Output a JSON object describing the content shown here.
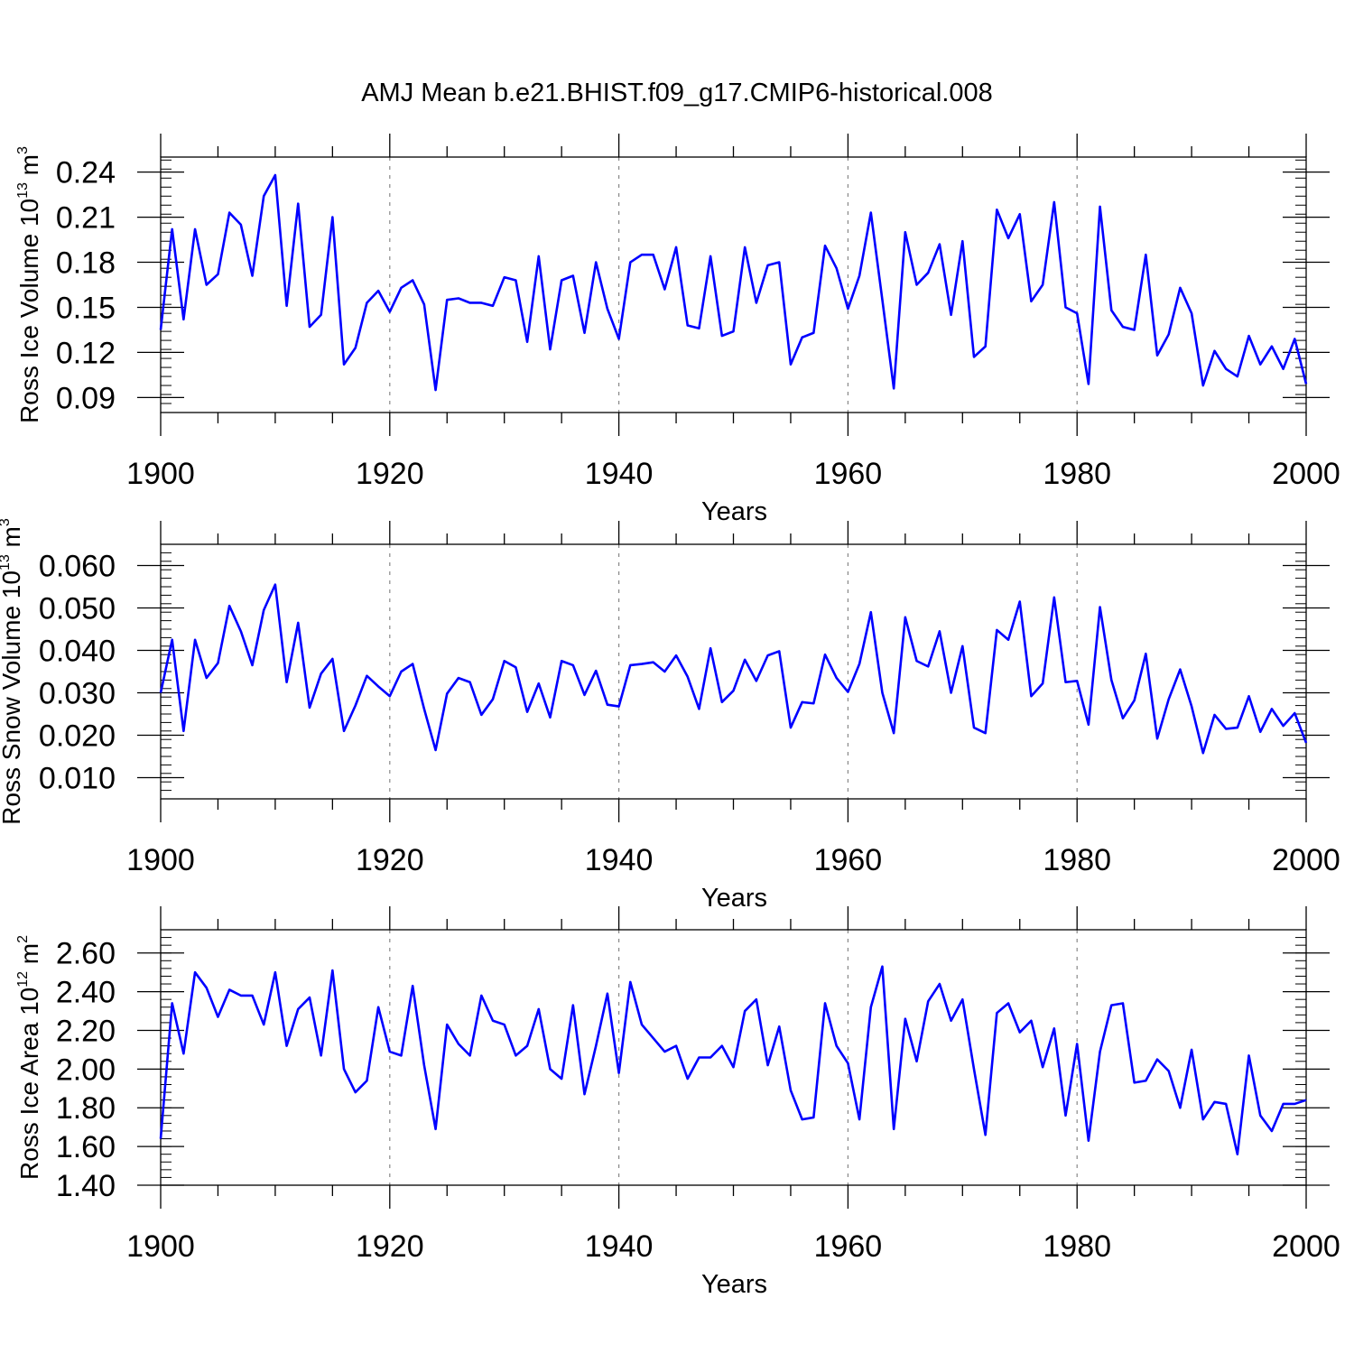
{
  "title": "AMJ Mean b.e21.BHIST.f09_g17.CMIP6-historical.008",
  "colors": {
    "series": "#0000ff",
    "axis": "#000000",
    "grid": "#888888",
    "background": "#ffffff"
  },
  "chart_data": [
    {
      "type": "line",
      "ylabel": "Ross Ice Volume 10",
      "ylabel_exp": "13",
      "ylabel_unit": " m",
      "ylabel_unit_exp": "3",
      "xlabel": "Years",
      "xlim": [
        1900,
        2000
      ],
      "ylim": [
        0.08,
        0.25
      ],
      "x_ticks": [
        1900,
        1920,
        1940,
        1960,
        1980,
        2000
      ],
      "x_tick_labels": [
        "1900",
        "1920",
        "1940",
        "1960",
        "1980",
        "2000"
      ],
      "y_ticks": [
        0.09,
        0.12,
        0.15,
        0.18,
        0.21,
        0.24
      ],
      "y_tick_labels": [
        "0.09",
        "0.12",
        "0.15",
        "0.18",
        "0.21",
        "0.24"
      ],
      "grid": "x-dashed",
      "x_start": 1900,
      "values": [
        0.135,
        0.202,
        0.142,
        0.202,
        0.165,
        0.172,
        0.213,
        0.205,
        0.171,
        0.224,
        0.238,
        0.151,
        0.219,
        0.137,
        0.145,
        0.21,
        0.112,
        0.123,
        0.153,
        0.161,
        0.147,
        0.163,
        0.168,
        0.152,
        0.095,
        0.155,
        0.156,
        0.153,
        0.153,
        0.151,
        0.17,
        0.168,
        0.127,
        0.184,
        0.122,
        0.168,
        0.171,
        0.133,
        0.18,
        0.149,
        0.129,
        0.18,
        0.185,
        0.185,
        0.162,
        0.19,
        0.138,
        0.136,
        0.184,
        0.131,
        0.134,
        0.19,
        0.153,
        0.178,
        0.18,
        0.112,
        0.13,
        0.133,
        0.191,
        0.176,
        0.149,
        0.171,
        0.213,
        0.155,
        0.096,
        0.2,
        0.165,
        0.173,
        0.192,
        0.145,
        0.194,
        0.117,
        0.124,
        0.215,
        0.196,
        0.212,
        0.154,
        0.165,
        0.22,
        0.15,
        0.146,
        0.099,
        0.217,
        0.148,
        0.137,
        0.135,
        0.185,
        0.118,
        0.132,
        0.163,
        0.146,
        0.098,
        0.121,
        0.109,
        0.104,
        0.131,
        0.112,
        0.124,
        0.109,
        0.129,
        0.099
      ]
    },
    {
      "type": "line",
      "ylabel": "Ross Snow Volume 10",
      "ylabel_exp": "13",
      "ylabel_unit": " m",
      "ylabel_unit_exp": "3",
      "xlabel": "Years",
      "xlim": [
        1900,
        2000
      ],
      "ylim": [
        0.005,
        0.065
      ],
      "x_ticks": [
        1900,
        1920,
        1940,
        1960,
        1980,
        2000
      ],
      "x_tick_labels": [
        "1900",
        "1920",
        "1940",
        "1960",
        "1980",
        "2000"
      ],
      "y_ticks": [
        0.01,
        0.02,
        0.03,
        0.04,
        0.05,
        0.06
      ],
      "y_tick_labels": [
        "0.010",
        "0.020",
        "0.030",
        "0.040",
        "0.050",
        "0.060"
      ],
      "grid": "x-dashed",
      "x_start": 1900,
      "values": [
        0.03,
        0.0425,
        0.021,
        0.0425,
        0.0335,
        0.037,
        0.0505,
        0.0445,
        0.0365,
        0.0495,
        0.0555,
        0.0325,
        0.0465,
        0.0265,
        0.0345,
        0.038,
        0.021,
        0.027,
        0.034,
        0.0315,
        0.0292,
        0.035,
        0.0368,
        0.0262,
        0.0165,
        0.0298,
        0.0335,
        0.0325,
        0.0248,
        0.0285,
        0.0375,
        0.036,
        0.0255,
        0.0322,
        0.0242,
        0.0375,
        0.0365,
        0.0295,
        0.0352,
        0.0272,
        0.0268,
        0.0365,
        0.0368,
        0.0372,
        0.035,
        0.0388,
        0.0338,
        0.0262,
        0.0405,
        0.0278,
        0.0305,
        0.0378,
        0.0328,
        0.0388,
        0.0398,
        0.0218,
        0.0278,
        0.0275,
        0.039,
        0.0335,
        0.0302,
        0.0368,
        0.049,
        0.03,
        0.0205,
        0.0478,
        0.0375,
        0.0362,
        0.0445,
        0.03,
        0.041,
        0.0218,
        0.0205,
        0.0448,
        0.0425,
        0.0515,
        0.0292,
        0.0322,
        0.0525,
        0.0325,
        0.0328,
        0.0225,
        0.0502,
        0.033,
        0.024,
        0.0282,
        0.0392,
        0.0192,
        0.0285,
        0.0355,
        0.0268,
        0.0158,
        0.0248,
        0.0215,
        0.0218,
        0.0292,
        0.0208,
        0.0262,
        0.0222,
        0.0252,
        0.0182
      ]
    },
    {
      "type": "line",
      "ylabel": "Ross Ice Area 10",
      "ylabel_exp": "12",
      "ylabel_unit": " m",
      "ylabel_unit_exp": "2",
      "xlabel": "Years",
      "xlim": [
        1900,
        2000
      ],
      "ylim": [
        1.4,
        2.72
      ],
      "x_ticks": [
        1900,
        1920,
        1940,
        1960,
        1980,
        2000
      ],
      "x_tick_labels": [
        "1900",
        "1920",
        "1940",
        "1960",
        "1980",
        "2000"
      ],
      "y_ticks": [
        1.4,
        1.6,
        1.8,
        2.0,
        2.2,
        2.4,
        2.6
      ],
      "y_tick_labels": [
        "1.40",
        "1.60",
        "1.80",
        "2.00",
        "2.20",
        "2.40",
        "2.60"
      ],
      "grid": "x-dashed",
      "x_start": 1900,
      "values": [
        1.64,
        2.34,
        2.08,
        2.5,
        2.42,
        2.27,
        2.41,
        2.38,
        2.38,
        2.23,
        2.5,
        2.12,
        2.31,
        2.37,
        2.07,
        2.51,
        2.0,
        1.88,
        1.94,
        2.32,
        2.09,
        2.07,
        2.43,
        2.02,
        1.69,
        2.23,
        2.13,
        2.07,
        2.38,
        2.25,
        2.23,
        2.07,
        2.12,
        2.31,
        2.0,
        1.95,
        2.33,
        1.87,
        2.12,
        2.39,
        1.98,
        2.45,
        2.23,
        2.16,
        2.09,
        2.12,
        1.95,
        2.06,
        2.06,
        2.12,
        2.01,
        2.3,
        2.36,
        2.02,
        2.22,
        1.89,
        1.74,
        1.75,
        2.34,
        2.12,
        2.03,
        1.74,
        2.32,
        2.53,
        1.69,
        2.26,
        2.04,
        2.35,
        2.44,
        2.25,
        2.36,
        2.0,
        1.66,
        2.29,
        2.34,
        2.19,
        2.25,
        2.01,
        2.21,
        1.76,
        2.13,
        1.63,
        2.09,
        2.33,
        2.34,
        1.93,
        1.94,
        2.05,
        1.99,
        1.8,
        2.1,
        1.74,
        1.83,
        1.82,
        1.56,
        2.07,
        1.76,
        1.68,
        1.82,
        1.82,
        1.84
      ]
    }
  ]
}
